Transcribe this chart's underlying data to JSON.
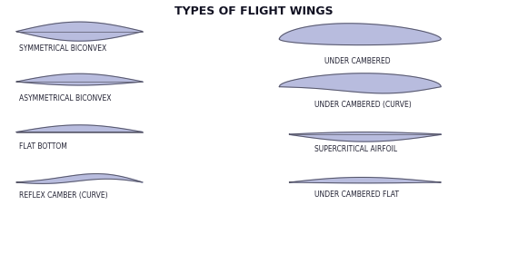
{
  "title": "TYPES OF FLIGHT WINGS",
  "background_color": "#ffffff",
  "fill_color": "#b8bcde",
  "line_color": "#555566",
  "title_fontsize": 9,
  "label_fontsize": 5.5,
  "labels": {
    "sym_biconvex": "SYMMETRICAL BICONVEX",
    "asym_biconvex": "ASYMMETRICAL BICONVEX",
    "flat_bottom": "FLAT BOTTOM",
    "reflex_camber": "REFLEX CAMBER (CURVE)",
    "under_cambered": "UNDER CAMBERED",
    "under_cambered_curve": "UNDER CAMBERED (CURVE)",
    "supercritical": "SUPERCRITICAL AIRFOIL",
    "under_cambered_flat": "UNDER CAMBERED FLAT"
  }
}
